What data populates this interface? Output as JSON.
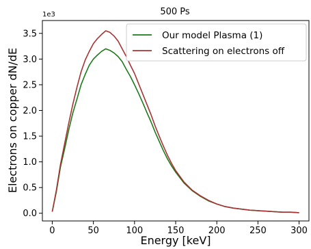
{
  "chart_data": {
    "type": "line",
    "title": "500 Ps",
    "xlabel": "Energy [keV]",
    "ylabel": "Electrons on copper dN/dE",
    "y_offset_label": "1e3",
    "xlim": [
      -12,
      312
    ],
    "ylim": [
      -0.15,
      3.75
    ],
    "x_ticks": [
      0,
      50,
      100,
      150,
      200,
      250,
      300
    ],
    "x_tick_labels": [
      "0",
      "50",
      "100",
      "150",
      "200",
      "250",
      "300"
    ],
    "y_ticks": [
      0.0,
      0.5,
      1.0,
      1.5,
      2.0,
      2.5,
      3.0,
      3.5
    ],
    "y_tick_labels": [
      "0.0",
      "0.5",
      "1.0",
      "1.5",
      "2.0",
      "2.5",
      "3.0",
      "3.5"
    ],
    "y_units_multiplier": 1000,
    "grid": false,
    "legend_position": "top-right",
    "series": [
      {
        "name": "Our model Plasma (1)",
        "color": "#1a7a1a",
        "x": [
          0,
          5,
          10,
          15,
          20,
          25,
          30,
          35,
          40,
          45,
          50,
          55,
          60,
          65,
          70,
          75,
          80,
          85,
          90,
          95,
          100,
          105,
          110,
          115,
          120,
          125,
          130,
          135,
          140,
          145,
          150,
          160,
          170,
          180,
          190,
          200,
          210,
          220,
          230,
          240,
          250,
          260,
          270,
          280,
          290,
          300
        ],
        "y": [
          0.03,
          0.42,
          0.9,
          1.25,
          1.62,
          1.95,
          2.22,
          2.5,
          2.7,
          2.88,
          3.0,
          3.08,
          3.15,
          3.2,
          3.17,
          3.12,
          3.05,
          2.95,
          2.8,
          2.66,
          2.5,
          2.33,
          2.15,
          1.96,
          1.78,
          1.58,
          1.4,
          1.22,
          1.06,
          0.92,
          0.8,
          0.59,
          0.44,
          0.33,
          0.24,
          0.18,
          0.13,
          0.1,
          0.08,
          0.06,
          0.05,
          0.04,
          0.03,
          0.02,
          0.02,
          0.01
        ]
      },
      {
        "name": "Scattering on electrons off",
        "color": "#a83232",
        "x": [
          0,
          5,
          10,
          15,
          20,
          25,
          30,
          35,
          40,
          45,
          50,
          55,
          60,
          65,
          70,
          75,
          80,
          85,
          90,
          95,
          100,
          105,
          110,
          115,
          120,
          125,
          130,
          135,
          140,
          145,
          150,
          160,
          170,
          180,
          190,
          200,
          210,
          220,
          230,
          240,
          250,
          260,
          270,
          280,
          290,
          300
        ],
        "y": [
          0.03,
          0.45,
          0.95,
          1.35,
          1.75,
          2.12,
          2.45,
          2.75,
          2.98,
          3.15,
          3.3,
          3.4,
          3.48,
          3.55,
          3.52,
          3.45,
          3.35,
          3.2,
          3.05,
          2.88,
          2.72,
          2.52,
          2.32,
          2.12,
          1.92,
          1.7,
          1.5,
          1.31,
          1.13,
          0.97,
          0.83,
          0.61,
          0.45,
          0.34,
          0.25,
          0.18,
          0.13,
          0.1,
          0.08,
          0.06,
          0.05,
          0.04,
          0.03,
          0.02,
          0.02,
          0.01
        ]
      }
    ]
  }
}
